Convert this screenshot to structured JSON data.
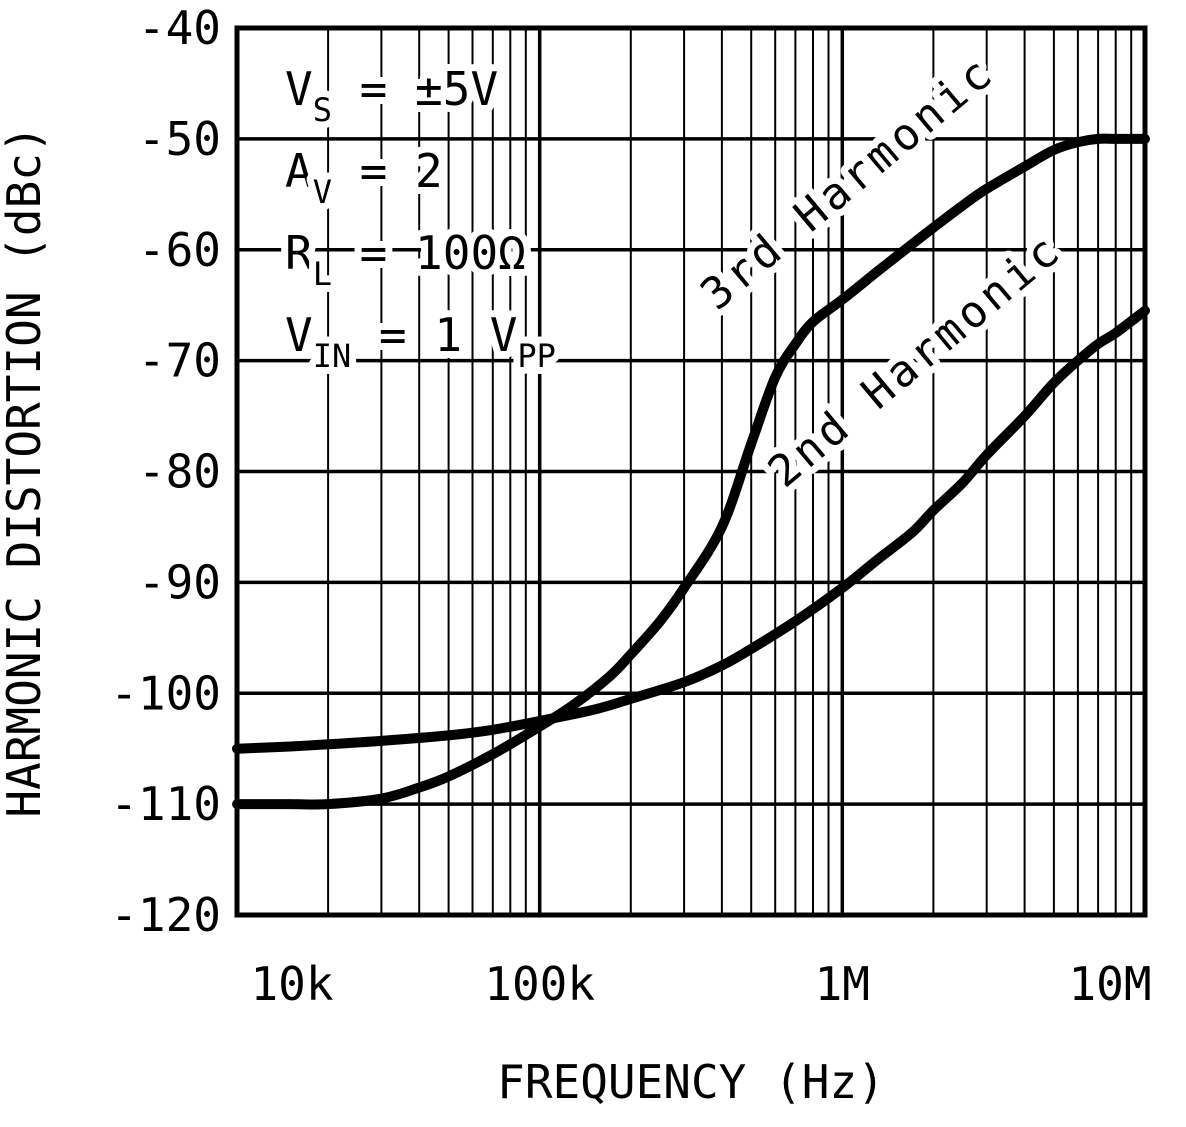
{
  "chart_data": {
    "type": "line",
    "title": "",
    "xlabel": "FREQUENCY (Hz)",
    "ylabel": "HARMONIC DISTORTION (dBc)",
    "x_scale": "log",
    "xlim": [
      10000,
      10000000
    ],
    "ylim": [
      -120,
      -40
    ],
    "grid": true,
    "colors": {
      "line": "#000000",
      "background": "#ffffff"
    },
    "x_ticks": [
      {
        "value": 10000,
        "label": "10k"
      },
      {
        "value": 100000,
        "label": "100k"
      },
      {
        "value": 1000000,
        "label": "1M"
      },
      {
        "value": 10000000,
        "label": "10M"
      }
    ],
    "y_ticks": [
      {
        "value": -40,
        "label": "-40"
      },
      {
        "value": -50,
        "label": "-50"
      },
      {
        "value": -60,
        "label": "-60"
      },
      {
        "value": -70,
        "label": "-70"
      },
      {
        "value": -80,
        "label": "-80"
      },
      {
        "value": -90,
        "label": "-90"
      },
      {
        "value": -100,
        "label": "-100"
      },
      {
        "value": -110,
        "label": "-110"
      },
      {
        "value": -120,
        "label": "-120"
      }
    ],
    "conditions": {
      "lines": [
        {
          "segments": [
            {
              "text": "V"
            },
            {
              "text": "S",
              "sub": true
            },
            {
              "text": "  =  ±5V"
            }
          ]
        },
        {
          "segments": [
            {
              "text": "A"
            },
            {
              "text": "V",
              "sub": true
            },
            {
              "text": "  =  2"
            }
          ]
        },
        {
          "segments": [
            {
              "text": "R"
            },
            {
              "text": "L",
              "sub": true
            },
            {
              "text": "  =  100Ω"
            }
          ]
        },
        {
          "segments": [
            {
              "text": "V"
            },
            {
              "text": "IN",
              "sub": true
            },
            {
              "text": "  =  1 V"
            },
            {
              "text": "PP",
              "sub": true
            }
          ]
        }
      ]
    },
    "series": [
      {
        "name": "3rd Harmonic",
        "label": {
          "text": "3rd Harmonic",
          "freq": 1120000,
          "value": -55,
          "angle": -40
        },
        "points": [
          [
            10000,
            -110
          ],
          [
            15000,
            -110
          ],
          [
            20000,
            -110
          ],
          [
            30000,
            -109.5
          ],
          [
            40000,
            -108.5
          ],
          [
            50000,
            -107.5
          ],
          [
            70000,
            -105.5
          ],
          [
            100000,
            -103
          ],
          [
            130000,
            -101
          ],
          [
            170000,
            -98.5
          ],
          [
            200000,
            -96.5
          ],
          [
            250000,
            -93.5
          ],
          [
            300000,
            -90.5
          ],
          [
            400000,
            -85
          ],
          [
            500000,
            -77.5
          ],
          [
            600000,
            -71.5
          ],
          [
            700000,
            -68.5
          ],
          [
            800000,
            -66.5
          ],
          [
            1000000,
            -64.5
          ],
          [
            1300000,
            -62
          ],
          [
            1700000,
            -59.5
          ],
          [
            2000000,
            -58
          ],
          [
            2500000,
            -56
          ],
          [
            3000000,
            -54.5
          ],
          [
            4000000,
            -52.5
          ],
          [
            5000000,
            -51
          ],
          [
            6000000,
            -50.3
          ],
          [
            7000000,
            -50
          ],
          [
            8000000,
            -50
          ],
          [
            10000000,
            -50
          ]
        ]
      },
      {
        "name": "2nd Harmonic",
        "label": {
          "text": "2nd Harmonic",
          "freq": 1870000,
          "value": -71,
          "angle": -40
        },
        "points": [
          [
            10000,
            -105
          ],
          [
            15000,
            -104.8
          ],
          [
            20000,
            -104.6
          ],
          [
            30000,
            -104.3
          ],
          [
            50000,
            -103.8
          ],
          [
            70000,
            -103.3
          ],
          [
            100000,
            -102.5
          ],
          [
            150000,
            -101.5
          ],
          [
            200000,
            -100.5
          ],
          [
            300000,
            -99
          ],
          [
            400000,
            -97.5
          ],
          [
            500000,
            -96
          ],
          [
            700000,
            -93.5
          ],
          [
            1000000,
            -90.5
          ],
          [
            1300000,
            -88
          ],
          [
            1700000,
            -85.5
          ],
          [
            2000000,
            -83.5
          ],
          [
            2500000,
            -81
          ],
          [
            3000000,
            -78.5
          ],
          [
            4000000,
            -75
          ],
          [
            5000000,
            -72
          ],
          [
            6000000,
            -70
          ],
          [
            7000000,
            -68.5
          ],
          [
            8000000,
            -67.5
          ],
          [
            10000000,
            -65.5
          ]
        ]
      }
    ]
  }
}
